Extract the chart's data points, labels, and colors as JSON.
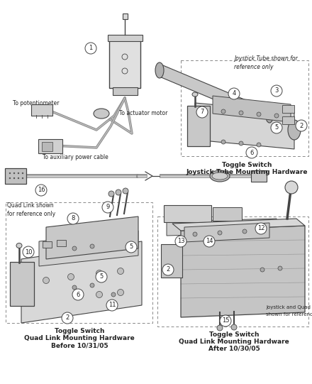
{
  "background_color": "#ffffff",
  "line_color": "#444444",
  "text_color": "#222222",
  "figsize": [
    4.4,
    5.41
  ],
  "dpi": 100,
  "labels": {
    "top_left_note1": "To potentiometer",
    "top_left_note2": "To actuator motor",
    "top_left_note3": "To auxiliary power cable",
    "top_right_note": "Joystick Tube shown for\nreference only",
    "bottom_left_note": "Quad Link shown\nfor reference only",
    "bottom_right_note1": "Joystick and Quad Link",
    "bottom_right_note2": "shown for reference only",
    "tr_cap1": "Toggle Switch",
    "tr_cap2": "Joystick Tube Mounting Hardware",
    "bl_cap1": "Toggle Switch",
    "bl_cap2": "Quad Link Mounting Hardware",
    "bl_cap3": "Before 10/31/05",
    "br_cap1": "Toggle Switch",
    "br_cap2": "Quad Link Mounting Hardware",
    "br_cap3": "After 10/30/05"
  }
}
